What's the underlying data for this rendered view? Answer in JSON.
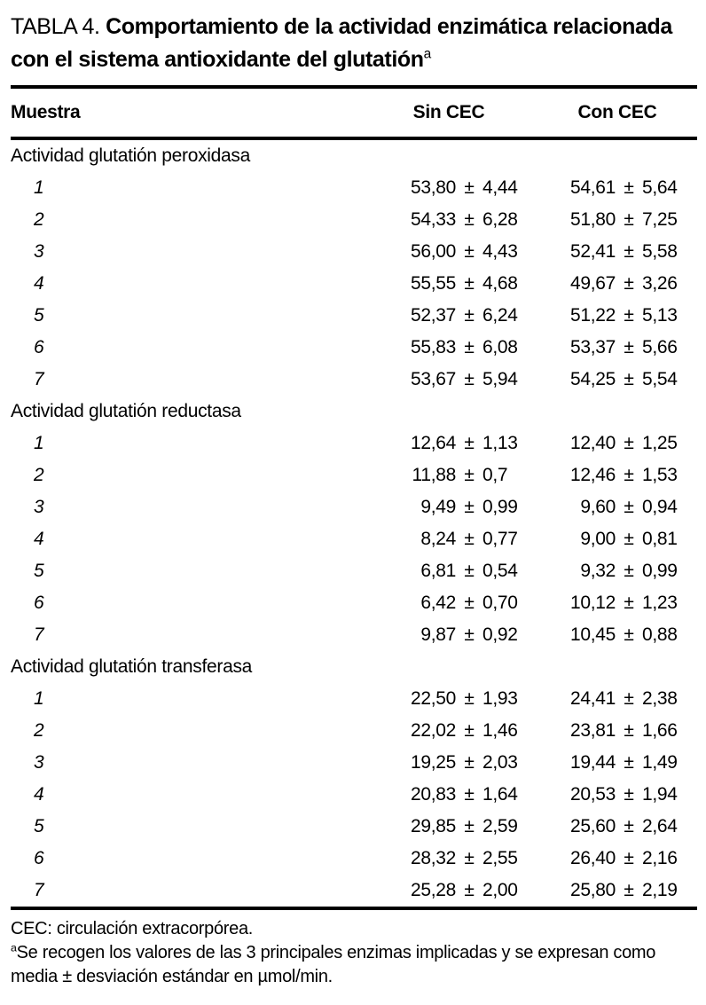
{
  "title": {
    "prefix": "TABLA 4. ",
    "bold_text": "Comportamiento de la actividad enzimática relacionada con el sistema antioxidante del glutatión",
    "superscript": "a"
  },
  "table": {
    "columns": [
      "Muestra",
      "Sin CEC",
      "Con CEC"
    ],
    "sections": [
      {
        "label": "Actividad glutatión peroxidasa",
        "rows": [
          {
            "muestra": "1",
            "sin": "53,80 ± 4,44",
            "con": "54,61 ± 5,64"
          },
          {
            "muestra": "2",
            "sin": "54,33 ± 6,28",
            "con": "51,80 ± 7,25"
          },
          {
            "muestra": "3",
            "sin": "56,00 ± 4,43",
            "con": "52,41 ± 5,58"
          },
          {
            "muestra": "4",
            "sin": "55,55 ± 4,68",
            "con": "49,67 ± 3,26"
          },
          {
            "muestra": "5",
            "sin": "52,37 ± 6,24",
            "con": "51,22 ± 5,13"
          },
          {
            "muestra": "6",
            "sin": "55,83 ± 6,08",
            "con": "53,37 ± 5,66"
          },
          {
            "muestra": "7",
            "sin": "53,67 ± 5,94",
            "con": "54,25 ± 5,54"
          }
        ]
      },
      {
        "label": "Actividad glutatión reductasa",
        "rows": [
          {
            "muestra": "1",
            "sin": "12,64 ± 1,13",
            "con": "12,40 ± 1,25"
          },
          {
            "muestra": "2",
            "sin": "11,88 ± 0,7",
            "con": "12,46 ± 1,53"
          },
          {
            "muestra": "3",
            "sin": "9,49 ± 0,99",
            "con": "9,60 ± 0,94"
          },
          {
            "muestra": "4",
            "sin": "8,24 ± 0,77",
            "con": "9,00 ± 0,81"
          },
          {
            "muestra": "5",
            "sin": "6,81 ± 0,54",
            "con": "9,32 ± 0,99"
          },
          {
            "muestra": "6",
            "sin": "6,42 ± 0,70",
            "con": "10,12 ± 1,23"
          },
          {
            "muestra": "7",
            "sin": "9,87 ± 0,92",
            "con": "10,45 ± 0,88"
          }
        ]
      },
      {
        "label": "Actividad glutatión transferasa",
        "rows": [
          {
            "muestra": "1",
            "sin": "22,50 ± 1,93",
            "con": "24,41 ± 2,38"
          },
          {
            "muestra": "2",
            "sin": "22,02 ± 1,46",
            "con": "23,81 ± 1,66"
          },
          {
            "muestra": "3",
            "sin": "19,25 ± 2,03",
            "con": "19,44 ± 1,49"
          },
          {
            "muestra": "4",
            "sin": "20,83 ± 1,64",
            "con": "20,53 ± 1,94"
          },
          {
            "muestra": "5",
            "sin": "29,85 ± 2,59",
            "con": "25,60 ± 2,64"
          },
          {
            "muestra": "6",
            "sin": "28,32 ± 2,55",
            "con": "26,40 ± 2,16"
          },
          {
            "muestra": "7",
            "sin": "25,28 ± 2,00",
            "con": "25,80 ± 2,19"
          }
        ]
      }
    ]
  },
  "footnotes": {
    "cec": "CEC: circulación extracorpórea.",
    "a_marker": "a",
    "a_text": "Se recogen los valores de las 3 principales enzimas implicadas y se expresan como media ± desviación estándar en µmol/min."
  }
}
